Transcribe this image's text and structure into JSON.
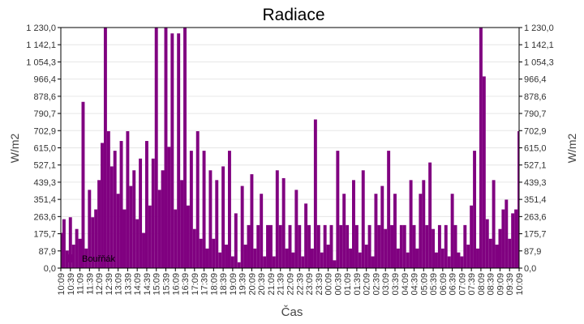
{
  "chart_data": {
    "type": "bar",
    "title": "Radiace",
    "xlabel": "Čas",
    "ylabel": "W/m2",
    "ylim": [
      0,
      1230
    ],
    "grid": true,
    "legend_placement": "bottom-left",
    "color": "#800080",
    "y_ticks": [
      "0,0",
      "87,9",
      "175,7",
      "263,6",
      "351,4",
      "439,3",
      "527,1",
      "615,0",
      "702,9",
      "790,7",
      "878,6",
      "966,4",
      "1 054,3",
      "1 142,1",
      "1 230,0"
    ],
    "x_ticks": [
      "10:09",
      "10:39",
      "11:09",
      "11:39",
      "12:09",
      "12:39",
      "13:09",
      "13:39",
      "14:09",
      "14:39",
      "15:09",
      "15:39",
      "16:09",
      "16:39",
      "17:09",
      "17:39",
      "18:09",
      "18:39",
      "19:09",
      "19:39",
      "20:09",
      "20:39",
      "21:09",
      "21:39",
      "22:09",
      "22:39",
      "23:09",
      "23:39",
      "00:09",
      "00:39",
      "01:09",
      "01:39",
      "02:09",
      "02:39",
      "03:09",
      "03:39",
      "04:09",
      "04:39",
      "05:09",
      "05:39",
      "06:09",
      "06:39",
      "07:09",
      "07:39",
      "08:09",
      "08:39",
      "09:09",
      "09:39",
      "10:09"
    ],
    "series": [
      {
        "name": "Bouřňák",
        "interval_minutes": 10,
        "values": [
          180,
          250,
          90,
          260,
          120,
          200,
          150,
          850,
          100,
          400,
          260,
          300,
          450,
          640,
          1230,
          700,
          520,
          600,
          380,
          650,
          300,
          700,
          420,
          500,
          250,
          560,
          180,
          650,
          320,
          560,
          1230,
          400,
          500,
          1230,
          620,
          1200,
          300,
          1200,
          450,
          1230,
          320,
          600,
          200,
          700,
          150,
          600,
          100,
          500,
          150,
          450,
          80,
          520,
          120,
          600,
          60,
          280,
          30,
          420,
          120,
          220,
          480,
          100,
          220,
          380,
          60,
          220,
          220,
          60,
          500,
          220,
          460,
          100,
          220,
          80,
          400,
          220,
          60,
          330,
          220,
          100,
          760,
          220,
          80,
          220,
          120,
          220,
          40,
          600,
          220,
          380,
          220,
          100,
          450,
          220,
          80,
          500,
          120,
          220,
          60,
          380,
          220,
          420,
          200,
          600,
          220,
          380,
          100,
          220,
          220,
          80,
          450,
          220,
          100,
          380,
          450,
          220,
          540,
          200,
          80,
          220,
          100,
          220,
          60,
          380,
          220,
          80,
          60,
          220,
          120,
          320,
          600,
          100,
          1230,
          980,
          250,
          150,
          450,
          120,
          200,
          300,
          350,
          150,
          280,
          300,
          700
        ]
      }
    ]
  }
}
